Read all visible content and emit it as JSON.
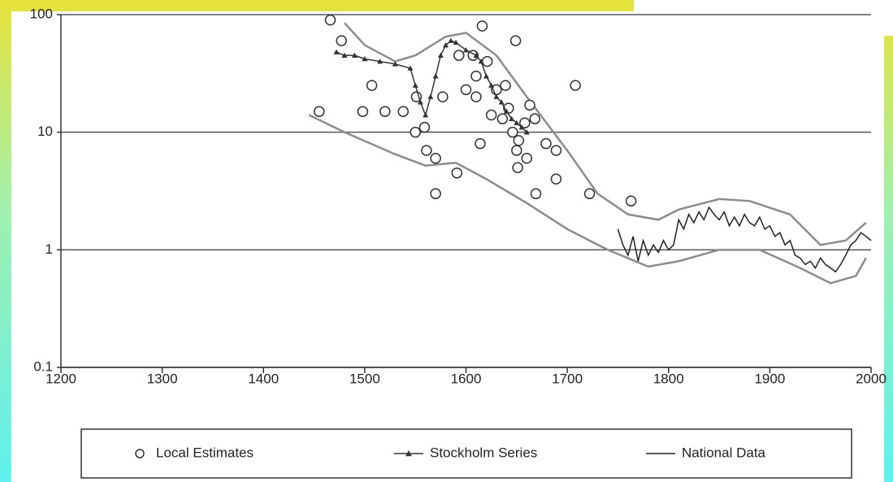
{
  "chart_data": {
    "type": "line",
    "log_y": true,
    "grid": true,
    "xlim": [
      1200,
      2000
    ],
    "xticks": [
      1200,
      1300,
      1400,
      1500,
      1600,
      1700,
      1800,
      1900,
      2000
    ],
    "ylim": [
      0.1,
      100
    ],
    "yticks": [
      0.1,
      1,
      10,
      100
    ],
    "legend": "bottom",
    "series": [
      {
        "name": "Local Estimates",
        "type": "scatter",
        "color": "#333333",
        "x": [
          1455,
          1466,
          1477,
          1507,
          1498,
          1520,
          1538,
          1550,
          1551,
          1559,
          1561,
          1570,
          1570,
          1577,
          1591,
          1593,
          1600,
          1607,
          1610,
          1610,
          1614,
          1616,
          1621,
          1625,
          1630,
          1636,
          1639,
          1642,
          1646,
          1649,
          1650,
          1651,
          1652,
          1658,
          1660,
          1663,
          1668,
          1669,
          1679,
          1689,
          1689,
          1708,
          1722,
          1763
        ],
        "values": [
          15,
          90,
          60,
          25,
          15,
          15,
          15,
          10,
          20,
          11,
          7,
          6,
          3,
          20,
          4.5,
          45,
          23,
          45,
          30,
          20,
          8,
          80,
          40,
          14,
          23,
          13,
          25,
          16,
          10,
          60,
          7,
          5,
          8.5,
          12,
          6,
          17,
          13,
          3,
          8,
          7,
          4,
          25,
          3,
          2.6
        ]
      },
      {
        "name": "Stockholm Series",
        "type": "line",
        "marker": "triangle",
        "color": "#333333",
        "x": [
          1472,
          1480,
          1490,
          1500,
          1515,
          1530,
          1545,
          1550,
          1555,
          1560,
          1565,
          1570,
          1575,
          1580,
          1585,
          1590,
          1600,
          1610,
          1615,
          1620,
          1625,
          1630,
          1635,
          1640,
          1645,
          1650,
          1655,
          1660
        ],
        "values": [
          48,
          45,
          45,
          42,
          40,
          38,
          35,
          25,
          18,
          14,
          20,
          30,
          45,
          55,
          60,
          58,
          50,
          45,
          40,
          30,
          25,
          20,
          18,
          15,
          13,
          12,
          11,
          10
        ]
      },
      {
        "name": "National Data",
        "type": "line",
        "color": "#222222",
        "x": [
          1750,
          1755,
          1760,
          1765,
          1770,
          1775,
          1780,
          1785,
          1790,
          1795,
          1800,
          1805,
          1810,
          1815,
          1820,
          1825,
          1830,
          1835,
          1840,
          1845,
          1850,
          1855,
          1860,
          1865,
          1870,
          1875,
          1880,
          1885,
          1890,
          1895,
          1900,
          1905,
          1910,
          1915,
          1920,
          1925,
          1930,
          1935,
          1940,
          1945,
          1950,
          1955,
          1960,
          1965,
          1970,
          1975,
          1980,
          1985,
          1990,
          1995,
          2000
        ],
        "values": [
          1.5,
          1.1,
          0.9,
          1.3,
          0.8,
          1.2,
          0.9,
          1.1,
          0.95,
          1.2,
          1.0,
          1.1,
          1.8,
          1.5,
          2.0,
          1.7,
          2.1,
          1.8,
          2.3,
          2.0,
          1.8,
          2.1,
          1.6,
          1.9,
          1.6,
          2.0,
          1.7,
          1.6,
          1.9,
          1.5,
          1.6,
          1.3,
          1.4,
          1.1,
          1.2,
          0.9,
          0.85,
          0.75,
          0.8,
          0.7,
          0.85,
          0.75,
          0.7,
          0.65,
          0.75,
          0.9,
          1.1,
          1.2,
          1.4,
          1.3,
          1.2
        ]
      }
    ],
    "envelope": {
      "color": "#8c8c8c",
      "upper": {
        "x": [
          1480,
          1500,
          1530,
          1550,
          1580,
          1600,
          1630,
          1660,
          1700,
          1730,
          1760,
          1790,
          1810,
          1850,
          1880,
          1920,
          1950,
          1975,
          1995
        ],
        "values": [
          85,
          55,
          40,
          45,
          65,
          70,
          45,
          20,
          7,
          3,
          2,
          1.8,
          2.2,
          2.7,
          2.6,
          2,
          1.1,
          1.2,
          1.7
        ]
      },
      "lower": {
        "x": [
          1445,
          1480,
          1530,
          1560,
          1590,
          1620,
          1660,
          1700,
          1740,
          1780,
          1810,
          1850,
          1890,
          1930,
          1960,
          1985,
          1995
        ],
        "values": [
          14,
          10,
          6.5,
          5.2,
          5.5,
          4,
          2.5,
          1.5,
          1.0,
          0.72,
          0.8,
          1.0,
          1.0,
          0.7,
          0.52,
          0.6,
          0.85
        ]
      }
    }
  }
}
